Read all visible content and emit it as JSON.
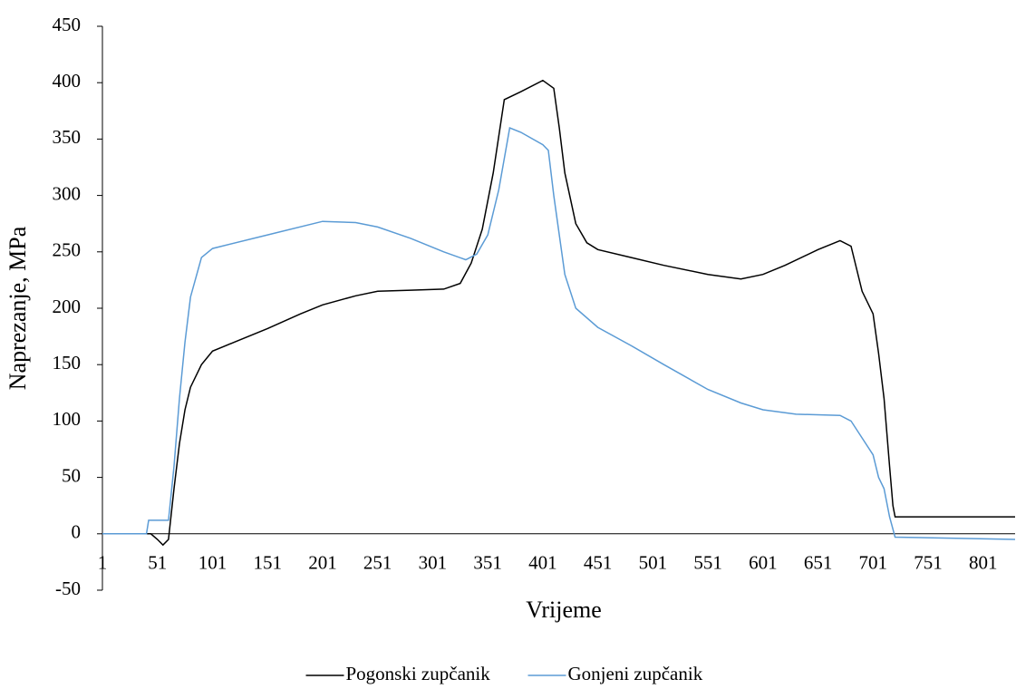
{
  "chart_data": {
    "type": "line",
    "x_label": "Vrijeme",
    "y_label": "Naprezanje, MPa",
    "xlim": [
      1,
      830
    ],
    "ylim": [
      -50,
      450
    ],
    "xticks": [
      1,
      51,
      101,
      151,
      201,
      251,
      301,
      351,
      401,
      451,
      501,
      551,
      601,
      651,
      701,
      751,
      801
    ],
    "yticks": [
      -50,
      0,
      50,
      100,
      150,
      200,
      250,
      300,
      350,
      400,
      450
    ],
    "legend": "bottom",
    "series": [
      {
        "name": "Pogonski zupčanik",
        "color": "#000000",
        "x": [
          1,
          45,
          51,
          56,
          61,
          66,
          71,
          76,
          81,
          91,
          101,
          121,
          151,
          181,
          201,
          231,
          251,
          281,
          311,
          326,
          336,
          346,
          356,
          366,
          381,
          401,
          411,
          416,
          421,
          431,
          441,
          451,
          481,
          511,
          551,
          581,
          601,
          621,
          651,
          671,
          681,
          691,
          701,
          706,
          711,
          716,
          719,
          721,
          830
        ],
        "values": [
          0,
          0,
          -5,
          -10,
          -5,
          40,
          80,
          110,
          130,
          150,
          162,
          170,
          182,
          195,
          203,
          211,
          215,
          216,
          217,
          222,
          240,
          270,
          320,
          385,
          392,
          402,
          395,
          360,
          320,
          275,
          258,
          252,
          245,
          238,
          230,
          226,
          230,
          238,
          252,
          260,
          255,
          215,
          195,
          160,
          120,
          60,
          25,
          15,
          15
        ]
      },
      {
        "name": "Gonjeni zupčanik",
        "color": "#5b9bd5",
        "x": [
          1,
          41,
          43,
          61,
          66,
          71,
          76,
          81,
          91,
          101,
          151,
          201,
          231,
          251,
          281,
          311,
          331,
          341,
          351,
          361,
          371,
          381,
          401,
          406,
          411,
          421,
          431,
          451,
          481,
          511,
          551,
          581,
          601,
          631,
          671,
          681,
          691,
          701,
          706,
          711,
          716,
          721,
          830
        ],
        "values": [
          0,
          0,
          12,
          12,
          60,
          120,
          170,
          210,
          245,
          253,
          265,
          277,
          276,
          272,
          262,
          250,
          243,
          248,
          265,
          305,
          360,
          356,
          345,
          340,
          300,
          230,
          200,
          183,
          167,
          150,
          128,
          116,
          110,
          106,
          105,
          100,
          85,
          70,
          50,
          40,
          15,
          -3,
          -5
        ]
      }
    ]
  }
}
